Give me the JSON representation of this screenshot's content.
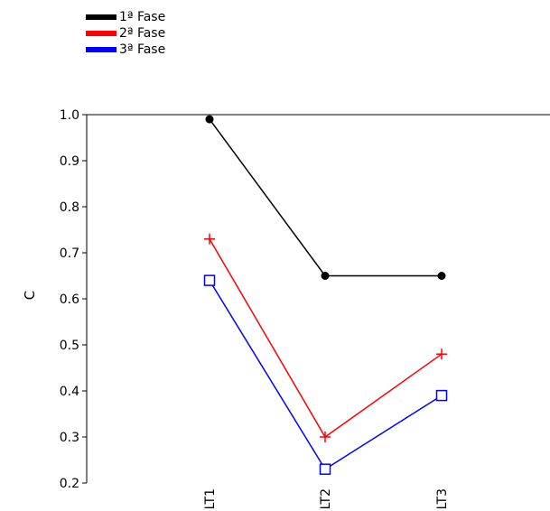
{
  "chart_data": {
    "type": "line",
    "categories": [
      "LT1",
      "LT2",
      "LT3"
    ],
    "series": [
      {
        "name": "1ª Fase",
        "values": [
          0.99,
          0.65,
          0.65
        ],
        "color": "#000000",
        "marker": "circle"
      },
      {
        "name": "2ª Fase",
        "values": [
          0.73,
          0.3,
          0.48
        ],
        "color": "#ff0000",
        "marker": "plus"
      },
      {
        "name": "3ª Fase",
        "values": [
          0.64,
          0.23,
          0.39
        ],
        "color": "#0000ff",
        "marker": "square"
      }
    ],
    "title": "",
    "xlabel": "",
    "ylabel": "C",
    "ylim": [
      0.2,
      1.0
    ],
    "yticks": [
      "0.2",
      "0.3",
      "0.4",
      "0.5",
      "0.6",
      "0.7",
      "0.8",
      "0.9",
      "1.0"
    ],
    "grid": false,
    "legend_position": "top-left"
  }
}
